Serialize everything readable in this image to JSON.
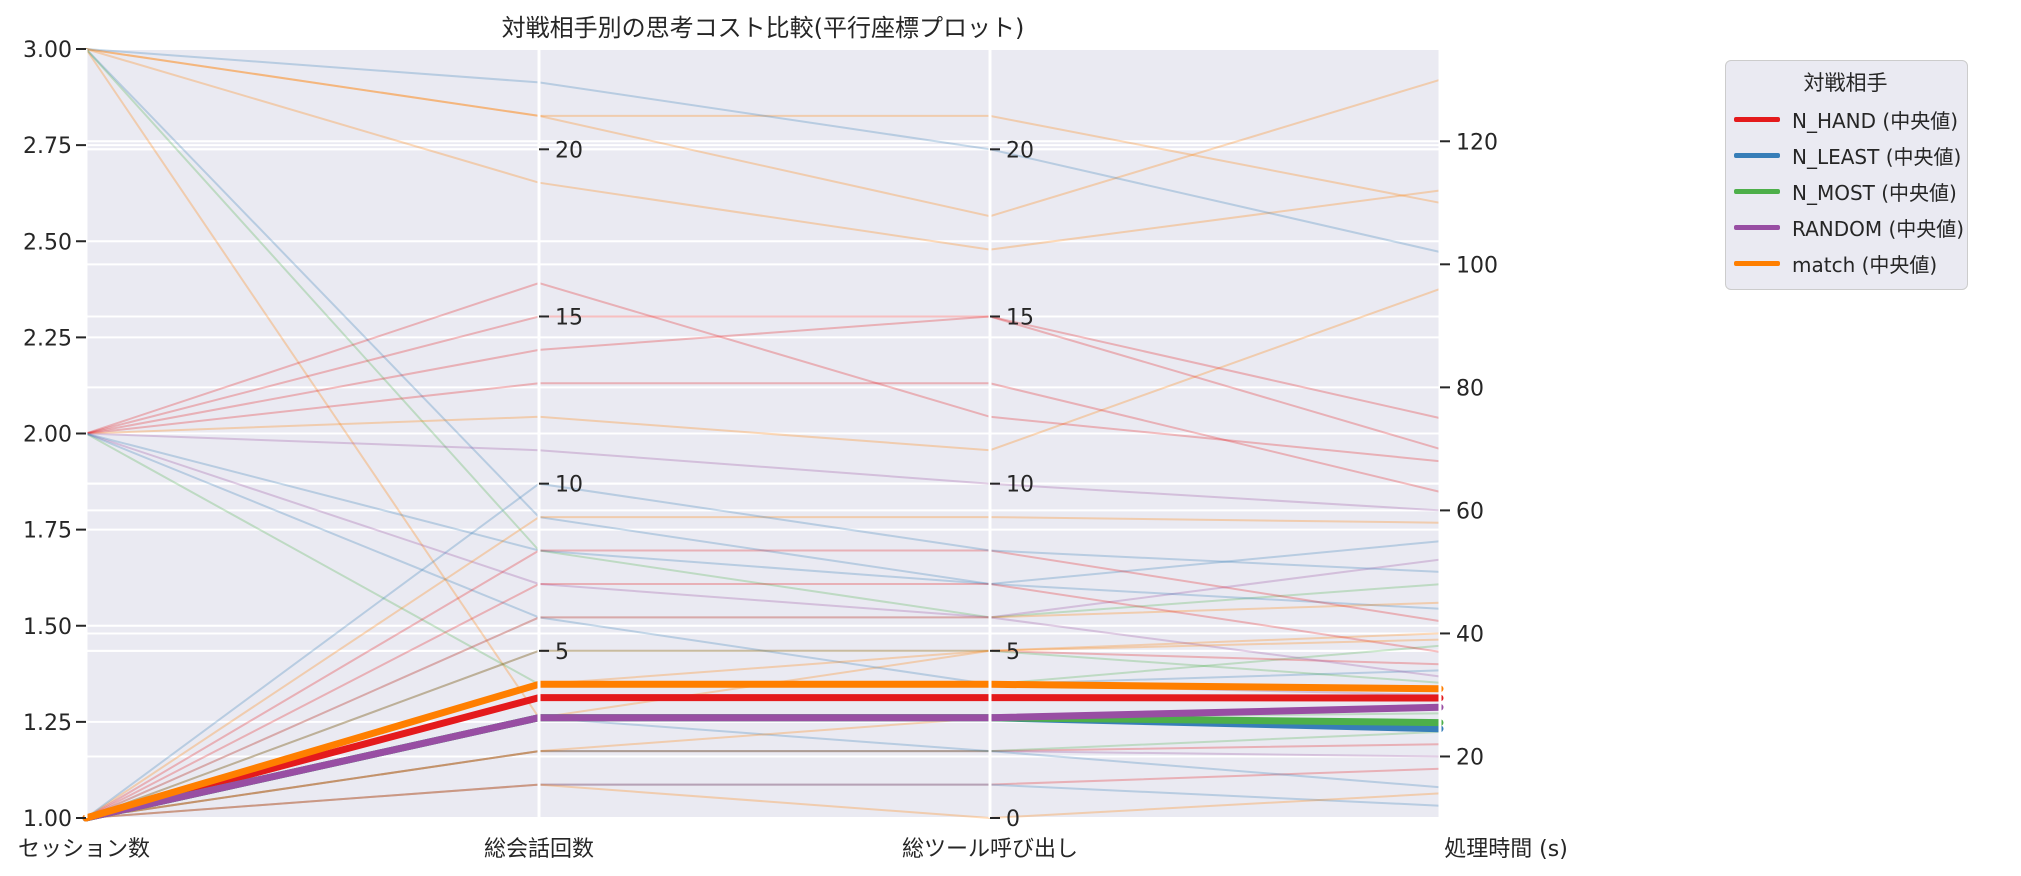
{
  "chart_data": {
    "type": "parallel_coordinates",
    "title": "対戦相手別の思考コスト比較(平行座標プロット)",
    "axes": [
      {
        "label": "セッション数",
        "range": [
          1.0,
          3.0
        ],
        "ticks": [
          "1.00",
          "1.25",
          "1.50",
          "1.75",
          "2.00",
          "2.25",
          "2.50",
          "2.75",
          "3.00"
        ],
        "tick_values": [
          1.0,
          1.25,
          1.5,
          1.75,
          2.0,
          2.25,
          2.5,
          2.75,
          3.0
        ]
      },
      {
        "label": "総会話回数",
        "range": [
          0,
          23
        ],
        "ticks": [
          "5",
          "10",
          "15",
          "20"
        ],
        "tick_values": [
          5,
          10,
          15,
          20
        ]
      },
      {
        "label": "総ツール呼び出し",
        "range": [
          0,
          23
        ],
        "ticks": [
          "0",
          "5",
          "10",
          "15",
          "20"
        ],
        "tick_values": [
          0,
          5,
          10,
          15,
          20
        ]
      },
      {
        "label": "処理時間 (s)",
        "range": [
          10,
          135
        ],
        "ticks": [
          "20",
          "40",
          "60",
          "80",
          "100",
          "120"
        ],
        "tick_values": [
          20,
          40,
          60,
          80,
          100,
          120
        ]
      }
    ],
    "legend": {
      "title": "対戦相手",
      "placement": "upper-right-outside",
      "entries": [
        {
          "name": "N_HAND (中央値)",
          "color": "#e41a1c"
        },
        {
          "name": "N_LEAST (中央値)",
          "color": "#377eb8"
        },
        {
          "name": "N_MOST (中央値)",
          "color": "#4daf4a"
        },
        {
          "name": "RANDOM (中央値)",
          "color": "#984ea3"
        },
        {
          "name": "match (中央値)",
          "color": "#ff7f00"
        }
      ]
    },
    "median_series": [
      {
        "name": "N_HAND (中央値)",
        "color": "#e41a1c",
        "values": [
          1.0,
          3.6,
          3.6,
          29.5
        ]
      },
      {
        "name": "N_LEAST (中央値)",
        "color": "#377eb8",
        "values": [
          1.0,
          3.0,
          3.0,
          24.5
        ]
      },
      {
        "name": "N_MOST (中央値)",
        "color": "#4daf4a",
        "values": [
          1.0,
          3.0,
          3.0,
          25.5
        ]
      },
      {
        "name": "RANDOM (中央値)",
        "color": "#984ea3",
        "values": [
          1.0,
          3.0,
          3.0,
          28.0
        ]
      },
      {
        "name": "match (中央値)",
        "color": "#ff7f00",
        "values": [
          1.0,
          4.0,
          4.0,
          31.0
        ]
      }
    ],
    "individual_series": [
      {
        "group": "match",
        "values": [
          3.0,
          21.0,
          18.0,
          130.0
        ]
      },
      {
        "group": "match",
        "values": [
          3.0,
          21.0,
          21.0,
          110.0
        ]
      },
      {
        "group": "match",
        "values": [
          3.0,
          19.0,
          17.0,
          112.0
        ]
      },
      {
        "group": "N_LEAST",
        "values": [
          3.0,
          22.0,
          20.0,
          102.0
        ]
      },
      {
        "group": "N_LEAST",
        "values": [
          3.0,
          9.0,
          7.0,
          55.0
        ]
      },
      {
        "group": "N_MOST",
        "values": [
          3.0,
          8.0,
          6.0,
          48.0
        ]
      },
      {
        "group": "match",
        "values": [
          3.0,
          3.0,
          5.0,
          40.0
        ]
      },
      {
        "group": "match",
        "values": [
          2.0,
          12.0,
          11.0,
          96.0
        ]
      },
      {
        "group": "N_HAND",
        "values": [
          2.0,
          15.0,
          15.0,
          70.0
        ]
      },
      {
        "group": "N_HAND",
        "values": [
          2.0,
          13.0,
          13.0,
          63.0
        ]
      },
      {
        "group": "N_HAND",
        "values": [
          2.0,
          14.0,
          15.0,
          75.0
        ]
      },
      {
        "group": "N_HAND",
        "values": [
          2.0,
          16.0,
          12.0,
          68.0
        ]
      },
      {
        "group": "RANDOM",
        "values": [
          2.0,
          11.0,
          10.0,
          60.0
        ]
      },
      {
        "group": "RANDOM",
        "values": [
          2.0,
          7.0,
          6.0,
          52.0
        ]
      },
      {
        "group": "N_MOST",
        "values": [
          2.0,
          4.0,
          4.0,
          38.0
        ]
      },
      {
        "group": "N_LEAST",
        "values": [
          2.0,
          6.0,
          4.0,
          34.0
        ]
      },
      {
        "group": "N_LEAST",
        "values": [
          2.0,
          8.0,
          7.0,
          44.0
        ]
      },
      {
        "group": "match",
        "values": [
          1.0,
          9.0,
          9.0,
          58.0
        ]
      },
      {
        "group": "match",
        "values": [
          1.0,
          6.0,
          6.0,
          45.0
        ]
      },
      {
        "group": "N_HAND",
        "values": [
          1.0,
          8.0,
          8.0,
          42.0
        ]
      },
      {
        "group": "N_HAND",
        "values": [
          1.0,
          7.0,
          7.0,
          37.0
        ]
      },
      {
        "group": "N_HAND",
        "values": [
          1.0,
          5.0,
          5.0,
          35.0
        ]
      },
      {
        "group": "N_HAND",
        "values": [
          1.0,
          2.0,
          2.0,
          22.0
        ]
      },
      {
        "group": "N_HAND",
        "values": [
          1.0,
          1.0,
          1.0,
          18.0
        ]
      },
      {
        "group": "RANDOM",
        "values": [
          1.0,
          6.0,
          6.0,
          33.0
        ]
      },
      {
        "group": "RANDOM",
        "values": [
          1.0,
          4.0,
          4.0,
          30.0
        ]
      },
      {
        "group": "RANDOM",
        "values": [
          1.0,
          2.0,
          2.0,
          20.0
        ]
      },
      {
        "group": "N_LEAST",
        "values": [
          1.0,
          3.0,
          2.0,
          15.0
        ]
      },
      {
        "group": "N_LEAST",
        "values": [
          1.0,
          1.0,
          1.0,
          12.0
        ]
      },
      {
        "group": "N_LEAST",
        "values": [
          1.0,
          10.0,
          8.0,
          50.0
        ]
      },
      {
        "group": "N_MOST",
        "values": [
          1.0,
          5.0,
          5.0,
          32.0
        ]
      },
      {
        "group": "N_MOST",
        "values": [
          1.0,
          2.0,
          2.0,
          24.0
        ]
      },
      {
        "group": "N_MOST",
        "values": [
          1.0,
          3.0,
          3.0,
          27.0
        ]
      },
      {
        "group": "match",
        "values": [
          1.0,
          4.0,
          5.0,
          39.0
        ]
      },
      {
        "group": "match",
        "values": [
          1.0,
          2.0,
          3.0,
          28.0
        ]
      },
      {
        "group": "match",
        "values": [
          1.0,
          1.0,
          0.0,
          14.0
        ]
      }
    ],
    "grid": true
  }
}
